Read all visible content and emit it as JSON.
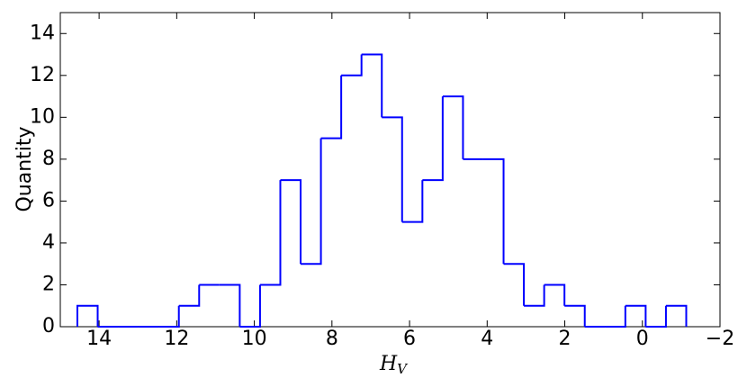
{
  "chart_data": {
    "type": "histogram",
    "xlabel": {
      "text": "H",
      "subscript": "V"
    },
    "ylabel": "Quantity",
    "bins": [
      -1.13,
      -0.607,
      -0.084,
      0.439,
      0.962,
      1.485,
      2.008,
      2.531,
      3.054,
      3.577,
      4.1,
      4.623,
      5.146,
      5.669,
      6.192,
      6.715,
      7.238,
      7.761,
      8.284,
      8.807,
      9.33,
      9.853,
      10.376,
      10.899,
      11.422,
      11.945,
      12.468,
      12.991,
      13.514,
      14.037,
      14.56
    ],
    "counts": [
      1,
      0,
      1,
      0,
      0,
      1,
      2,
      1,
      3,
      8,
      8,
      11,
      7,
      5,
      10,
      13,
      12,
      9,
      3,
      7,
      2,
      0,
      2,
      2,
      1,
      0,
      0,
      0,
      0,
      1
    ],
    "color": "#0000ff",
    "xlim": [
      15,
      -2
    ],
    "xticks": [
      14,
      12,
      10,
      8,
      6,
      4,
      2,
      0,
      {
        "value": -2,
        "label": "−2"
      }
    ],
    "ylim": [
      0,
      15
    ],
    "yticks": [
      0,
      2,
      4,
      6,
      8,
      10,
      12,
      14
    ]
  }
}
